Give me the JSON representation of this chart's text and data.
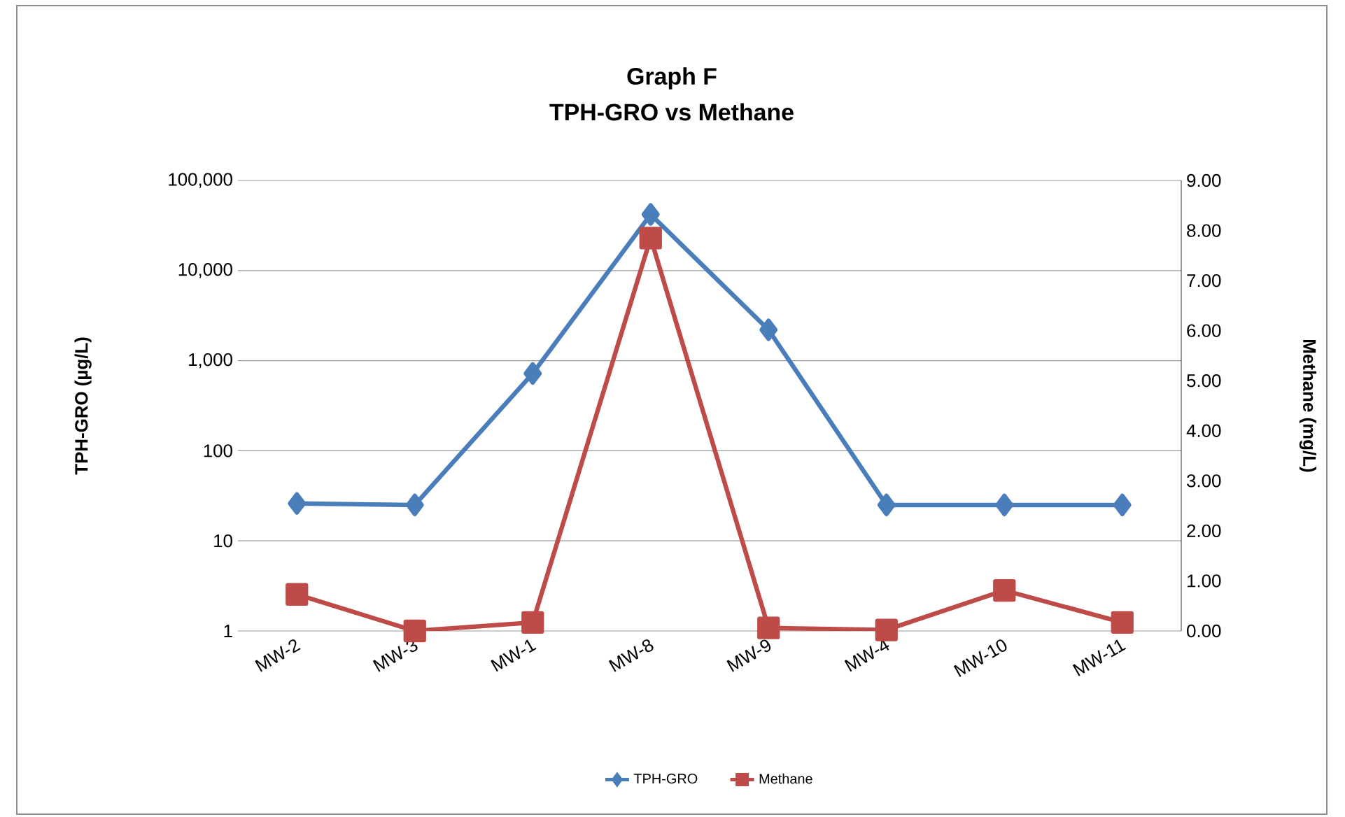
{
  "chart_data": {
    "type": "line",
    "title": "Graph F",
    "subtitle": "TPH-GRO vs Methane",
    "ylabel": "TPH-GRO (µg/L)",
    "y2label": "Methane (mg/L)",
    "categories": [
      "MW-2",
      "MW-3",
      "MW-1",
      "MW-8",
      "MW-9",
      "MW-4",
      "MW-10",
      "MW-11"
    ],
    "series": [
      {
        "name": "TPH-GRO",
        "color": "#4a7ebb",
        "marker": "diamond",
        "values": [
          26,
          25,
          720,
          42000,
          2200,
          25,
          25,
          25
        ]
      },
      {
        "name": "Methane",
        "color": "#be4b48",
        "marker": "square",
        "axis": "y2",
        "values": [
          0.73,
          0,
          0.17,
          7.85,
          0.06,
          0.02,
          0.81,
          0.17
        ]
      }
    ],
    "log": "y",
    "ylim": [
      1,
      100000
    ],
    "yticks": [
      {
        "value": 1,
        "label": "1"
      },
      {
        "value": 10,
        "label": "10"
      },
      {
        "value": 100,
        "label": "100"
      },
      {
        "value": 1000,
        "label": "1,000"
      },
      {
        "value": 10000,
        "label": "10,000"
      },
      {
        "value": 100000,
        "label": "100,000"
      }
    ],
    "y2lim": [
      0,
      9
    ],
    "y2ticks": [
      {
        "value": 0,
        "label": "0.00"
      },
      {
        "value": 1,
        "label": "1.00"
      },
      {
        "value": 2,
        "label": "2.00"
      },
      {
        "value": 3,
        "label": "3.00"
      },
      {
        "value": 4,
        "label": "4.00"
      },
      {
        "value": 5,
        "label": "5.00"
      },
      {
        "value": 6,
        "label": "6.00"
      },
      {
        "value": 7,
        "label": "7.00"
      },
      {
        "value": 8,
        "label": "8.00"
      },
      {
        "value": 9,
        "label": "9.00"
      }
    ],
    "grid": "y",
    "legend": "bottom",
    "line_style": "solid"
  }
}
